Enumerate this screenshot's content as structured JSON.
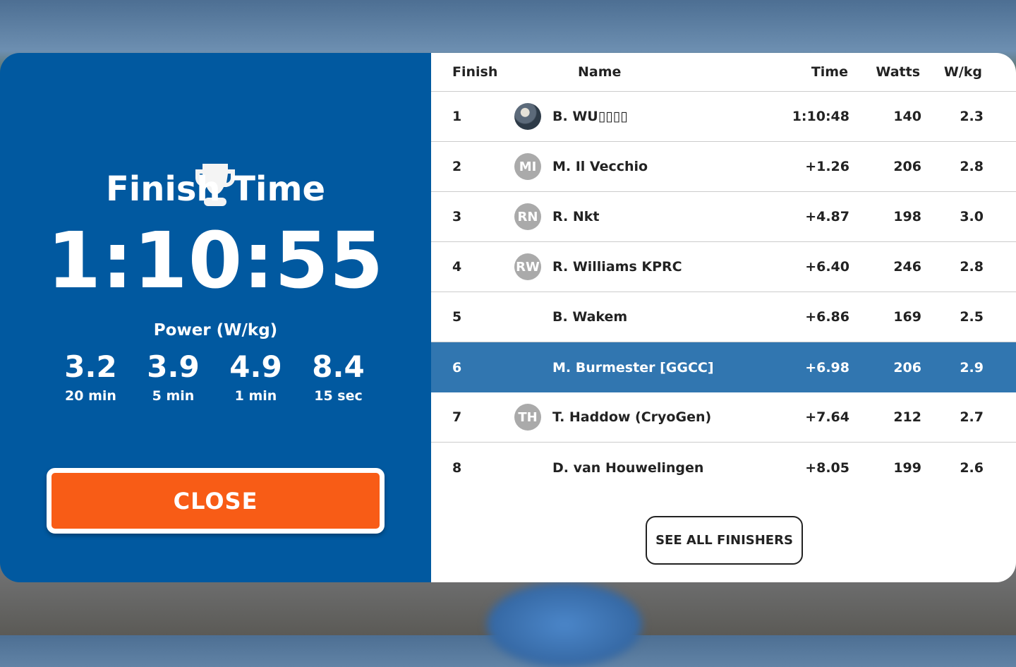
{
  "summary": {
    "title": "Finish Time",
    "finish_time": "1:10:55",
    "power_label": "Power (W/kg)",
    "stats": [
      {
        "value": "3.2",
        "label": "20 min"
      },
      {
        "value": "3.9",
        "label": "5 min"
      },
      {
        "value": "4.9",
        "label": "1 min"
      },
      {
        "value": "8.4",
        "label": "15 sec"
      }
    ],
    "close_label": "CLOSE",
    "icon": "trophy-icon"
  },
  "table": {
    "columns": [
      "Finish",
      "Name",
      "Time",
      "Watts",
      "W/kg"
    ],
    "rows": [
      {
        "finish": "1",
        "avatar": "photo",
        "name": "B. WU▯▯▯▯",
        "time": "1:10:48",
        "watts": "140",
        "wkg": "2.3"
      },
      {
        "finish": "2",
        "avatar": "MI",
        "name": "M. Il Vecchio",
        "time": "+1.26",
        "watts": "206",
        "wkg": "2.8"
      },
      {
        "finish": "3",
        "avatar": "RN",
        "name": "R. Nkt",
        "time": "+4.87",
        "watts": "198",
        "wkg": "3.0"
      },
      {
        "finish": "4",
        "avatar": "RW",
        "name": "R. Williams KPRC",
        "time": "+6.40",
        "watts": "246",
        "wkg": "2.8"
      },
      {
        "finish": "5",
        "avatar": "",
        "name": "B. Wakem",
        "time": "+6.86",
        "watts": "169",
        "wkg": "2.5"
      },
      {
        "finish": "6",
        "avatar": "",
        "name": "M. Burmester [GGCC]",
        "time": "+6.98",
        "watts": "206",
        "wkg": "2.9",
        "highlighted": true
      },
      {
        "finish": "7",
        "avatar": "TH",
        "name": "T. Haddow (CryoGen)",
        "time": "+7.64",
        "watts": "212",
        "wkg": "2.7"
      },
      {
        "finish": "8",
        "avatar": "",
        "name": "D.  van Houwelingen",
        "time": "+8.05",
        "watts": "199",
        "wkg": "2.6"
      }
    ]
  },
  "see_all_label": "SEE ALL FINISHERS",
  "colors": {
    "left_panel": "#0159a0",
    "close_button": "#f85c16",
    "highlight_row": "#3176b0"
  }
}
